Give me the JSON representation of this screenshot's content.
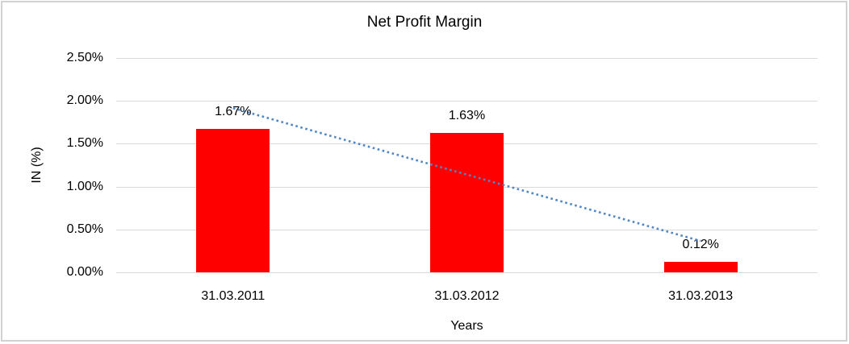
{
  "chart_data": {
    "type": "bar",
    "title": "Net Profit Margin",
    "xlabel": "Years",
    "ylabel": "IN (%)",
    "categories": [
      "31.03.2011",
      "31.03.2012",
      "31.03.2013"
    ],
    "values": [
      1.67,
      1.63,
      0.12
    ],
    "data_labels": [
      "1.67%",
      "1.63%",
      "0.12%"
    ],
    "ylim": [
      0,
      2.5
    ],
    "ytick_step": 0.5,
    "ytick_labels": [
      "0.00%",
      "0.50%",
      "1.00%",
      "1.50%",
      "2.00%",
      "2.50%"
    ],
    "grid": true,
    "legend": false,
    "trendline": {
      "type": "linear",
      "style": "dotted"
    },
    "colors": {
      "bar": "#FF0000",
      "trendline": "#4F86C6",
      "gridline": "#D9D9D9",
      "text": "#000000",
      "border": "#D2D2D2",
      "background": "#FFFFFF"
    }
  }
}
